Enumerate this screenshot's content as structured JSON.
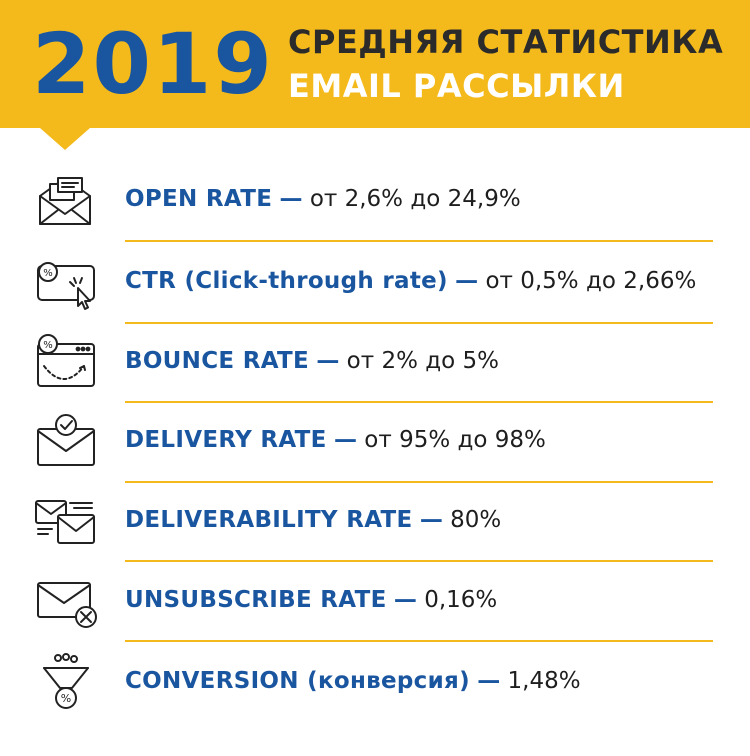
{
  "header": {
    "year": "2019",
    "title_line1": "СРЕДНЯЯ СТАТИСТИКА",
    "title_line2": "EMAIL РАССЫЛКИ"
  },
  "colors": {
    "accent_yellow": "#F4BA1C",
    "metric_blue": "#1A56A0",
    "text_dark": "#1E1E1E",
    "title_dark": "#2B2B2B"
  },
  "metrics": [
    {
      "name": "OPEN RATE",
      "separator": "—",
      "value": "от 2,6% до 24,9%",
      "icon": "open-envelope-icon"
    },
    {
      "name": "CTR (Click-through rate)",
      "separator": "—",
      "value": "от 0,5% до 2,66%",
      "icon": "click-percent-icon"
    },
    {
      "name": "BOUNCE RATE",
      "separator": "—",
      "value": "от 2% до 5%",
      "icon": "bounce-browser-icon"
    },
    {
      "name": "DELIVERY RATE",
      "separator": "—",
      "value": "от 95% до 98%",
      "icon": "envelope-check-icon"
    },
    {
      "name": "DELIVERABILITY RATE",
      "separator": "—",
      "value": "80%",
      "icon": "multiple-envelopes-icon"
    },
    {
      "name": "UNSUBSCRIBE RATE",
      "separator": "—",
      "value": "0,16%",
      "icon": "envelope-x-icon"
    },
    {
      "name": "CONVERSION (конверсия)",
      "separator": "—",
      "value": "1,48%",
      "icon": "funnel-percent-icon"
    }
  ]
}
